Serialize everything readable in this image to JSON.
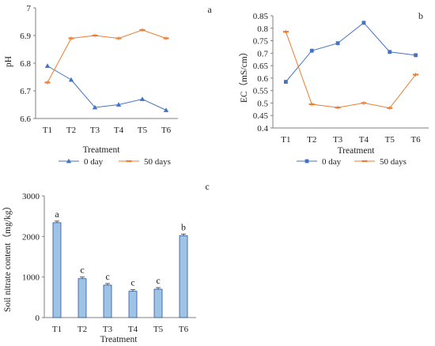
{
  "colors": {
    "day0": "#4472c4",
    "day50": "#ed7d31",
    "bar": "#9dc3e6",
    "bar_edge": "#2f5597",
    "axis": "#7f7f7f"
  },
  "chart_data": [
    {
      "type": "line",
      "panel_label": "a",
      "categories": [
        "T1",
        "T2",
        "T3",
        "T4",
        "T5",
        "T6"
      ],
      "xlabel": "Treatment",
      "ylabel": "pH",
      "ylim": [
        6.6,
        7
      ],
      "yticks": [
        "6.6",
        "6.7",
        "6.8",
        "6.9",
        "7"
      ],
      "grid": false,
      "legend_position": "bottom",
      "series": [
        {
          "name": "0 day",
          "color": "#4472c4",
          "marker": "triangle",
          "values": [
            6.79,
            6.74,
            6.64,
            6.65,
            6.67,
            6.63
          ]
        },
        {
          "name": "50 days",
          "color": "#ed7d31",
          "marker": "dash",
          "values": [
            6.73,
            6.89,
            6.9,
            6.89,
            6.92,
            6.89
          ]
        }
      ]
    },
    {
      "type": "line",
      "panel_label": "b",
      "categories": [
        "T1",
        "T2",
        "T3",
        "T4",
        "T5",
        "T6"
      ],
      "xlabel": "Treatment",
      "ylabel": "EC（mS/cm）",
      "ylim": [
        0.4,
        0.85
      ],
      "yticks": [
        "0.4",
        "0.45",
        "0.5",
        "0.55",
        "0.6",
        "0.65",
        "0.7",
        "0.75",
        "0.8",
        "0.85"
      ],
      "grid": false,
      "legend_position": "bottom",
      "series": [
        {
          "name": "0 day",
          "color": "#4472c4",
          "marker": "square",
          "values": [
            0.585,
            0.71,
            0.74,
            0.822,
            0.705,
            0.692
          ]
        },
        {
          "name": "50 days",
          "color": "#ed7d31",
          "marker": "dash",
          "values": [
            0.786,
            0.495,
            0.482,
            0.5,
            0.48,
            0.614
          ]
        }
      ]
    },
    {
      "type": "bar",
      "panel_label": "c",
      "categories": [
        "T1",
        "T2",
        "T3",
        "T4",
        "T5",
        "T6"
      ],
      "xlabel": "Treatment",
      "ylabel": "Soil nitrate content（mg/kg）",
      "ylim": [
        0,
        3000
      ],
      "yticks": [
        "0",
        "1000",
        "2000",
        "3000"
      ],
      "grid": false,
      "values": [
        2340,
        960,
        800,
        650,
        700,
        2020
      ],
      "significance": [
        "a",
        "c",
        "c",
        "c",
        "c",
        "b"
      ]
    }
  ]
}
